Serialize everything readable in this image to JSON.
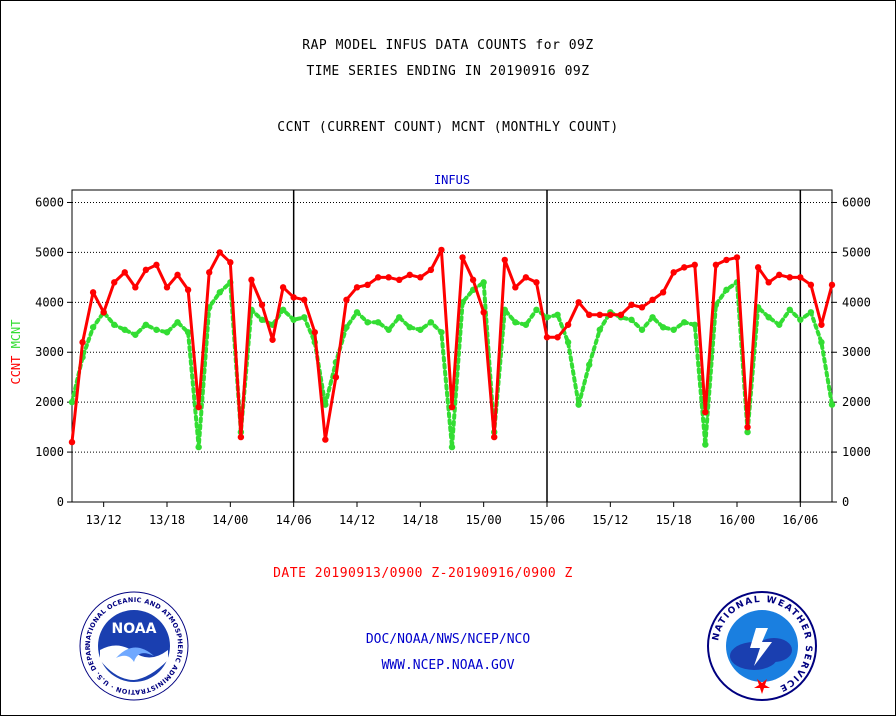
{
  "titles": {
    "line1": "RAP MODEL INFUS DATA COUNTS for 09Z",
    "line2": "TIME SERIES ENDING IN 20190916 09Z",
    "line3": "CCNT (CURRENT COUNT) MCNT (MONTHLY COUNT)"
  },
  "footer": {
    "date_range": "DATE 20190913/0900 Z-20190916/0900 Z",
    "org": "DOC/NOAA/NWS/NCEP/NCO",
    "url": "WWW.NCEP.NOAA.GOV"
  },
  "logos": {
    "noaa": {
      "text": "NOAA",
      "ring_text": "NATIONAL OCEANIC AND ATMOSPHERIC ADMINISTRATION · U.S. DEPARTMENT OF COMMERCE"
    },
    "nws": {
      "ring_text": "NATIONAL WEATHER SERVICE"
    }
  },
  "colors": {
    "ccnt": "#ff0000",
    "mcnt": "#33dd33",
    "axis": "#000000",
    "label_blue": "#0000cc"
  },
  "chart_data": {
    "type": "line",
    "title": "INFUS",
    "ylabel_ccnt": "CCNT",
    "ylabel_mcnt": "MCNT",
    "ylim": [
      0,
      6000
    ],
    "yticks": [
      0,
      1000,
      2000,
      3000,
      4000,
      5000,
      6000
    ],
    "xlim": [
      0,
      72
    ],
    "xtick_positions": [
      3,
      9,
      15,
      21,
      27,
      33,
      39,
      45,
      51,
      57,
      63,
      69
    ],
    "xtick_labels": [
      "13/12",
      "13/18",
      "14/00",
      "14/06",
      "14/12",
      "14/18",
      "15/00",
      "15/06",
      "15/12",
      "15/18",
      "16/00",
      "16/06"
    ],
    "day_lines": [
      21,
      45,
      69
    ],
    "grid": "horizontal dotted",
    "series": [
      {
        "name": "CCNT",
        "color": "#ff0000",
        "values": [
          1200,
          3200,
          4200,
          3800,
          4400,
          4600,
          4300,
          4650,
          4750,
          4300,
          4550,
          4250,
          1900,
          4600,
          5000,
          4800,
          1300,
          4450,
          3950,
          3250,
          4300,
          4100,
          4050,
          3400,
          1250,
          2500,
          4050,
          4300,
          4350,
          4500,
          4500,
          4450,
          4550,
          4500,
          4650,
          5050,
          1900,
          4900,
          4450,
          3800,
          1300,
          4850,
          4300,
          4500,
          4400,
          3300,
          3300,
          3550,
          4000,
          3750,
          3750,
          3750,
          3750,
          3950,
          3900,
          4050,
          4200,
          4600,
          4700,
          4750,
          1800,
          4750,
          4850,
          4900,
          1500,
          4700,
          4400,
          4550,
          4500,
          4500,
          4350,
          3550,
          4350
        ]
      },
      {
        "name": "MCNT",
        "color": "#33dd33",
        "values": [
          2000,
          2900,
          3500,
          3800,
          3550,
          3450,
          3350,
          3550,
          3450,
          3400,
          3600,
          3400,
          1100,
          3900,
          4200,
          4400,
          1400,
          3850,
          3650,
          3550,
          3850,
          3650,
          3700,
          3200,
          1950,
          2800,
          3500,
          3800,
          3600,
          3600,
          3450,
          3700,
          3500,
          3450,
          3600,
          3400,
          1100,
          4000,
          4250,
          4400,
          1400,
          3850,
          3600,
          3550,
          3850,
          3700,
          3750,
          3200,
          1950,
          2750,
          3450,
          3800,
          3700,
          3650,
          3450,
          3700,
          3500,
          3450,
          3600,
          3550,
          1150,
          3950,
          4250,
          4400,
          1400,
          3900,
          3700,
          3550,
          3850,
          3650,
          3800,
          3200,
          1950
        ]
      }
    ]
  }
}
